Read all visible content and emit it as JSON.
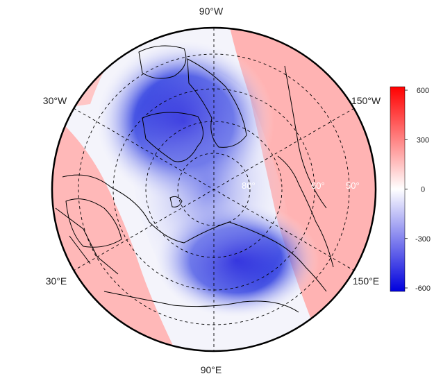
{
  "map": {
    "projection": "north polar azimuthal",
    "longitude_labels": {
      "top": "90°W",
      "upper_left": "30°W",
      "upper_right": "150°W",
      "lower_left": "30°E",
      "lower_right": "150°E",
      "bottom": "90°E"
    },
    "latitude_labels": [
      "80°",
      "60°",
      "50°"
    ],
    "field_colors": {
      "negative": "#0000dd",
      "zero": "#ffffff",
      "positive": "#ff0000"
    }
  },
  "colorbar": {
    "ticks": [
      "600",
      "300",
      "0",
      "-300",
      "-600"
    ],
    "min": -600,
    "max": 600
  }
}
